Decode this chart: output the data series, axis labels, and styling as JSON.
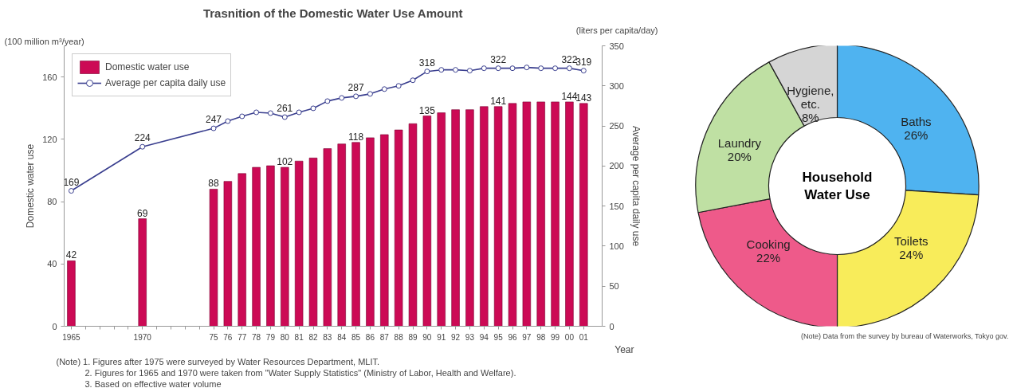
{
  "chart_data": [
    {
      "type": "bar",
      "title": "Trasnition of the Domestic Water Use Amount",
      "xlabel": "Year",
      "ylabel": "Domestic water use",
      "y2label": "Average per capita daily use",
      "x": [
        1965,
        1970,
        1975,
        1976,
        1977,
        1978,
        1979,
        1980,
        1981,
        1982,
        1983,
        1984,
        1985,
        1986,
        1987,
        1988,
        1989,
        1990,
        1991,
        1992,
        1993,
        1994,
        1995,
        1996,
        1997,
        1998,
        1999,
        2000,
        2001
      ],
      "series": [
        {
          "name": "Domestic water use",
          "type": "bar",
          "color": "#cc0a55",
          "values": [
            42,
            69,
            88,
            93,
            98,
            102,
            103,
            102,
            106,
            108,
            114,
            117,
            118,
            121,
            123,
            126,
            130,
            135,
            137,
            139,
            139,
            141,
            141,
            143,
            144,
            144,
            144,
            144,
            143
          ],
          "value_labels": [
            "42",
            "69",
            "88",
            null,
            null,
            null,
            null,
            "102",
            null,
            null,
            null,
            null,
            "118",
            null,
            null,
            null,
            null,
            "135",
            null,
            null,
            null,
            null,
            "141",
            null,
            null,
            null,
            null,
            "144",
            "143"
          ]
        },
        {
          "name": "Average per capita daily use",
          "type": "line",
          "axis": "y2",
          "color": "#3a3f8f",
          "marker": "circle",
          "values": [
            169,
            224,
            247,
            256,
            262,
            267,
            266,
            261,
            267,
            272,
            281,
            285,
            287,
            290,
            296,
            300,
            307,
            318,
            320,
            320,
            319,
            322,
            322,
            322,
            323,
            322,
            322,
            322,
            319
          ],
          "value_labels": [
            "169",
            "224",
            "247",
            null,
            null,
            null,
            null,
            "261",
            null,
            null,
            null,
            null,
            "287",
            null,
            null,
            null,
            null,
            "318",
            null,
            null,
            null,
            null,
            "322",
            null,
            null,
            null,
            null,
            "322",
            "319"
          ]
        }
      ],
      "xlim": [
        1964.5,
        2002.3
      ],
      "xticks": [
        1965,
        {
          "value": 1966,
          "label": null
        },
        {
          "value": 1967,
          "label": null
        },
        {
          "value": 1968,
          "label": null
        },
        {
          "value": 1969,
          "label": null
        },
        1970,
        {
          "value": 1971,
          "label": null
        },
        {
          "value": 1972,
          "label": null
        },
        {
          "value": 1973,
          "label": null
        },
        {
          "value": 1974,
          "label": null
        },
        {
          "value": 1975,
          "label": "75"
        },
        {
          "value": 1976,
          "label": "76"
        },
        {
          "value": 1977,
          "label": "77"
        },
        {
          "value": 1978,
          "label": "78"
        },
        {
          "value": 1979,
          "label": "79"
        },
        {
          "value": 1980,
          "label": "80"
        },
        {
          "value": 1981,
          "label": "81"
        },
        {
          "value": 1982,
          "label": "82"
        },
        {
          "value": 1983,
          "label": "83"
        },
        {
          "value": 1984,
          "label": "84"
        },
        {
          "value": 1985,
          "label": "85"
        },
        {
          "value": 1986,
          "label": "86"
        },
        {
          "value": 1987,
          "label": "87"
        },
        {
          "value": 1988,
          "label": "88"
        },
        {
          "value": 1989,
          "label": "89"
        },
        {
          "value": 1990,
          "label": "90"
        },
        {
          "value": 1991,
          "label": "91"
        },
        {
          "value": 1992,
          "label": "92"
        },
        {
          "value": 1993,
          "label": "93"
        },
        {
          "value": 1994,
          "label": "94"
        },
        {
          "value": 1995,
          "label": "95"
        },
        {
          "value": 1996,
          "label": "96"
        },
        {
          "value": 1997,
          "label": "97"
        },
        {
          "value": 1998,
          "label": "98"
        },
        {
          "value": 1999,
          "label": "99"
        },
        {
          "value": 2000,
          "label": "00"
        },
        {
          "value": 2001,
          "label": "01"
        }
      ],
      "ylim": [
        0,
        180
      ],
      "yticks": [
        0,
        40,
        80,
        120,
        160
      ],
      "y2lim": [
        0,
        350
      ],
      "y2ticks": [
        0,
        50,
        100,
        150,
        200,
        250,
        300,
        350
      ],
      "legend": "top left",
      "grid": false,
      "annotations": [
        "(100 million m³/year)",
        "(liters per capita/day)",
        "(Note) 1. Figures after 1975 were surveyed by Water Resources Department, MLIT.",
        "2. Figures for 1965 and 1970 were taken from \"Water Supply Statistics\" (Ministry of Labor, Health and Welfare).",
        "3. Based on effective water volume"
      ]
    },
    {
      "type": "donut",
      "title": "Household\nWater Use",
      "categories": [
        "Baths",
        "Toilets",
        "Cooking",
        "Laundry",
        "Hygiene, etc."
      ],
      "values": [
        26,
        24,
        22,
        20,
        8
      ],
      "value_labels": [
        "26%",
        "24%",
        "22%",
        "20%",
        "8%"
      ],
      "colors": [
        "#4fb3f0",
        "#f8ec5a",
        "#ee5a8a",
        "#bfe0a3",
        "#d5d5d5"
      ],
      "annotations": [
        "(Note) Data from the survey by bureau of Waterworks, Tokyo gov."
      ]
    }
  ]
}
